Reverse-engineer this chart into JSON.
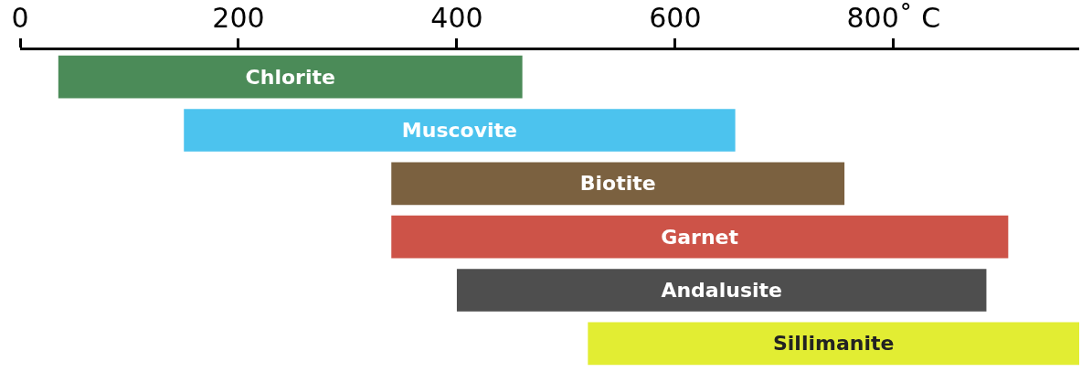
{
  "chart_data": {
    "type": "bar",
    "orientation": "horizontal",
    "categories": [
      "Chlorite",
      "Muscovite",
      "Biotite",
      "Garnet",
      "Andalusite",
      "Sillimanite"
    ],
    "base": [
      35,
      150,
      340,
      340,
      400,
      520
    ],
    "values": [
      425,
      505,
      415,
      565,
      485,
      450
    ],
    "colors": [
      "#1e6e2e",
      "#1fb4ea",
      "#5a3a10",
      "#c0281a",
      "#222222",
      "#dbe800"
    ],
    "xlim": [
      0,
      970
    ],
    "xticks": [
      0,
      200,
      400,
      600,
      {
        "value": 800,
        "label": "800˚ C"
      }
    ],
    "tick_labels": "x"
  }
}
